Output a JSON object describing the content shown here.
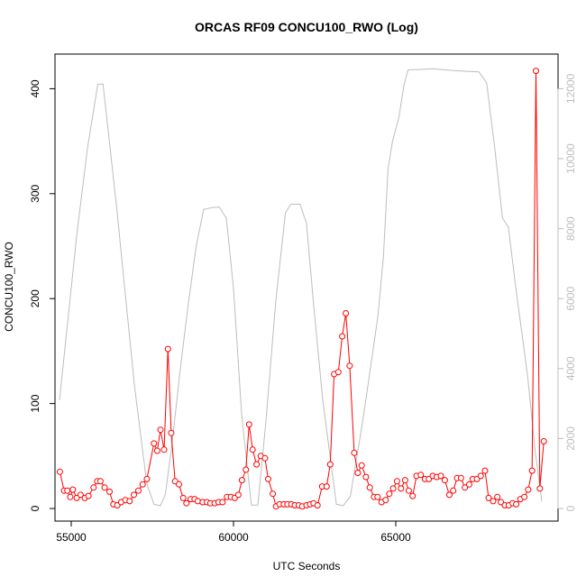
{
  "chart_data": {
    "type": "line",
    "title": "ORCAS RF09 CONCU100_RWO (Log)",
    "xlabel": "UTC Seconds",
    "ylabel": "CONCU100_RWO",
    "xlim": [
      54500,
      70000
    ],
    "ylim": [
      -12,
      433
    ],
    "y2lim": [
      -360,
      12990
    ],
    "x_ticks": [
      55000,
      60000,
      65000
    ],
    "y_ticks": [
      0,
      100,
      200,
      300,
      400
    ],
    "y2_ticks": [
      0,
      2000,
      4000,
      6000,
      8000,
      10000,
      12000
    ],
    "grid": false,
    "colors": {
      "concentration": "#ff0000",
      "altitude": "#bdbdbd"
    },
    "series": [
      {
        "marker": "open-circle",
        "axis": "left",
        "points": [
          [
            54650,
            35
          ],
          [
            54780,
            17
          ],
          [
            54880,
            17
          ],
          [
            54970,
            11
          ],
          [
            55050,
            18
          ],
          [
            55170,
            10
          ],
          [
            55290,
            13
          ],
          [
            55420,
            10
          ],
          [
            55530,
            12
          ],
          [
            55690,
            20
          ],
          [
            55800,
            26
          ],
          [
            55900,
            26
          ],
          [
            56030,
            20
          ],
          [
            56180,
            16
          ],
          [
            56300,
            4
          ],
          [
            56420,
            3
          ],
          [
            56540,
            6
          ],
          [
            56670,
            8
          ],
          [
            56800,
            7
          ],
          [
            56930,
            13
          ],
          [
            57070,
            17
          ],
          [
            57200,
            23
          ],
          [
            57330,
            28
          ],
          [
            57550,
            62
          ],
          [
            57650,
            55
          ],
          [
            57750,
            75
          ],
          [
            57860,
            56
          ],
          [
            57980,
            152
          ],
          [
            58080,
            72
          ],
          [
            58200,
            26
          ],
          [
            58320,
            23
          ],
          [
            58450,
            10
          ],
          [
            58550,
            5
          ],
          [
            58680,
            9
          ],
          [
            58800,
            9
          ],
          [
            58900,
            7
          ],
          [
            59050,
            6
          ],
          [
            59180,
            6
          ],
          [
            59290,
            5
          ],
          [
            59420,
            5
          ],
          [
            59540,
            6
          ],
          [
            59660,
            6
          ],
          [
            59800,
            11
          ],
          [
            59920,
            11
          ],
          [
            60040,
            10
          ],
          [
            60150,
            13
          ],
          [
            60260,
            27
          ],
          [
            60380,
            37
          ],
          [
            60480,
            80
          ],
          [
            60590,
            56
          ],
          [
            60710,
            42
          ],
          [
            60840,
            50
          ],
          [
            60970,
            48
          ],
          [
            61070,
            28
          ],
          [
            61210,
            14
          ],
          [
            61310,
            2
          ],
          [
            61420,
            4
          ],
          [
            61550,
            4
          ],
          [
            61660,
            4
          ],
          [
            61780,
            4
          ],
          [
            61890,
            3
          ],
          [
            62010,
            3
          ],
          [
            62120,
            2
          ],
          [
            62250,
            3
          ],
          [
            62360,
            4
          ],
          [
            62470,
            5
          ],
          [
            62590,
            3
          ],
          [
            62730,
            21
          ],
          [
            62870,
            21
          ],
          [
            62980,
            42
          ],
          [
            63100,
            128
          ],
          [
            63230,
            130
          ],
          [
            63350,
            164
          ],
          [
            63460,
            186
          ],
          [
            63580,
            136
          ],
          [
            63720,
            53
          ],
          [
            63830,
            34
          ],
          [
            63950,
            41
          ],
          [
            64080,
            30
          ],
          [
            64200,
            20
          ],
          [
            64330,
            11
          ],
          [
            64440,
            11
          ],
          [
            64560,
            6
          ],
          [
            64690,
            8
          ],
          [
            64800,
            14
          ],
          [
            64920,
            19
          ],
          [
            65040,
            26
          ],
          [
            65160,
            19
          ],
          [
            65290,
            27
          ],
          [
            65400,
            17
          ],
          [
            65520,
            12
          ],
          [
            65640,
            31
          ],
          [
            65770,
            32
          ],
          [
            65900,
            28
          ],
          [
            66020,
            28
          ],
          [
            66140,
            31
          ],
          [
            66260,
            30
          ],
          [
            66390,
            31
          ],
          [
            66510,
            27
          ],
          [
            66650,
            13
          ],
          [
            66770,
            17
          ],
          [
            66890,
            29
          ],
          [
            67010,
            29
          ],
          [
            67130,
            20
          ],
          [
            67260,
            23
          ],
          [
            67370,
            28
          ],
          [
            67500,
            28
          ],
          [
            67620,
            31
          ],
          [
            67750,
            36
          ],
          [
            67860,
            10
          ],
          [
            68000,
            7
          ],
          [
            68130,
            11
          ],
          [
            68240,
            6
          ],
          [
            68360,
            3
          ],
          [
            68480,
            3
          ],
          [
            68600,
            5
          ],
          [
            68710,
            4
          ],
          [
            68840,
            9
          ],
          [
            68960,
            11
          ],
          [
            69080,
            18
          ],
          [
            69200,
            36
          ],
          [
            69320,
            417
          ],
          [
            69440,
            19
          ],
          [
            69560,
            64
          ]
        ]
      },
      {
        "marker": "none",
        "axis": "right",
        "points": [
          [
            54640,
            3100
          ],
          [
            55170,
            7800
          ],
          [
            55500,
            10300
          ],
          [
            55820,
            12130
          ],
          [
            55980,
            12130
          ],
          [
            56400,
            8600
          ],
          [
            56950,
            3500
          ],
          [
            57330,
            700
          ],
          [
            57550,
            120
          ],
          [
            57750,
            80
          ],
          [
            57900,
            400
          ],
          [
            58100,
            1800
          ],
          [
            58350,
            3900
          ],
          [
            58600,
            5800
          ],
          [
            58850,
            7500
          ],
          [
            59080,
            8550
          ],
          [
            59340,
            8600
          ],
          [
            59560,
            8620
          ],
          [
            59780,
            8300
          ],
          [
            60000,
            6300
          ],
          [
            60250,
            2700
          ],
          [
            60550,
            100
          ],
          [
            60750,
            100
          ],
          [
            61000,
            2500
          ],
          [
            61300,
            5900
          ],
          [
            61600,
            8450
          ],
          [
            61760,
            8700
          ],
          [
            62050,
            8700
          ],
          [
            62250,
            8150
          ],
          [
            62460,
            5900
          ],
          [
            62750,
            3100
          ],
          [
            63170,
            120
          ],
          [
            63380,
            80
          ],
          [
            63600,
            350
          ],
          [
            64000,
            2600
          ],
          [
            64450,
            5500
          ],
          [
            64620,
            7200
          ],
          [
            64760,
            9700
          ],
          [
            64900,
            10500
          ],
          [
            65100,
            11200
          ],
          [
            65250,
            12100
          ],
          [
            65380,
            12540
          ],
          [
            65700,
            12550
          ],
          [
            66150,
            12570
          ],
          [
            66600,
            12530
          ],
          [
            67100,
            12500
          ],
          [
            67560,
            12480
          ],
          [
            67800,
            12170
          ],
          [
            68050,
            10300
          ],
          [
            68290,
            8300
          ],
          [
            68470,
            8050
          ],
          [
            68700,
            6300
          ],
          [
            69060,
            3800
          ],
          [
            69300,
            1600
          ],
          [
            69500,
            200
          ]
        ]
      }
    ]
  }
}
